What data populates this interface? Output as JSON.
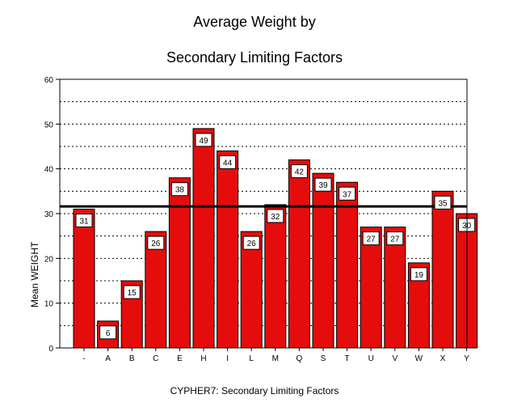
{
  "title_line1": "Average Weight by",
  "title_line2": "Secondary Limiting Factors",
  "chart_data": {
    "type": "bar",
    "title": "Average Weight by Secondary Limiting Factors",
    "xlabel": "CYPHER7: Secondary Limiting Factors",
    "ylabel": "Mean WEIGHT",
    "ylim": [
      0,
      60
    ],
    "yticks": [
      0,
      10,
      20,
      30,
      40,
      50,
      60
    ],
    "categories": [
      "-",
      "A",
      "B",
      "C",
      "E",
      "H",
      "I",
      "L",
      "M",
      "Q",
      "S",
      "T",
      "U",
      "V",
      "W",
      "X",
      "Y"
    ],
    "values": [
      31,
      6,
      15,
      26,
      38,
      49,
      44,
      26,
      32,
      42,
      39,
      37,
      27,
      27,
      19,
      35,
      30
    ],
    "data_labels": [
      "31",
      "6",
      "15",
      "26",
      "38",
      "49",
      "44",
      "26",
      "32",
      "42",
      "39",
      "37",
      "27",
      "27",
      "19",
      "35",
      "30"
    ],
    "reference_line": 31.6,
    "grid": "horizontal dashed",
    "bar_color": "#e50c0c"
  }
}
